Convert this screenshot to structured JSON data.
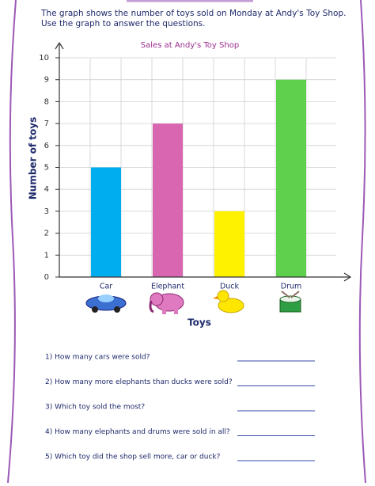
{
  "instructions": [
    "The graph shows the number of toys sold on Monday at Andy's Toy Shop.",
    "Use the graph to answer the questions."
  ],
  "chart_data": {
    "type": "bar",
    "title": "Sales at Andy's Toy Shop",
    "x_label": "Toys",
    "y_label": "Number of toys",
    "categories": [
      "Car",
      "Elephant",
      "Duck",
      "Drum"
    ],
    "values": [
      5,
      7,
      3,
      9
    ],
    "colors": [
      "#00aeef",
      "#d966b0",
      "#fff200",
      "#5ed04d"
    ],
    "ylim": [
      0,
      10
    ],
    "yticks": [
      0,
      1,
      2,
      3,
      4,
      5,
      6,
      7,
      8,
      9,
      10
    ],
    "grid": true
  },
  "questions": [
    "1)  How many cars were sold?",
    "2)  How many more elephants than ducks were sold?",
    "3)  Which toy sold the most?",
    "4)  How many elephants and drums were sold in all?",
    "5)  Which toy did the shop sell more, car or duck?"
  ]
}
